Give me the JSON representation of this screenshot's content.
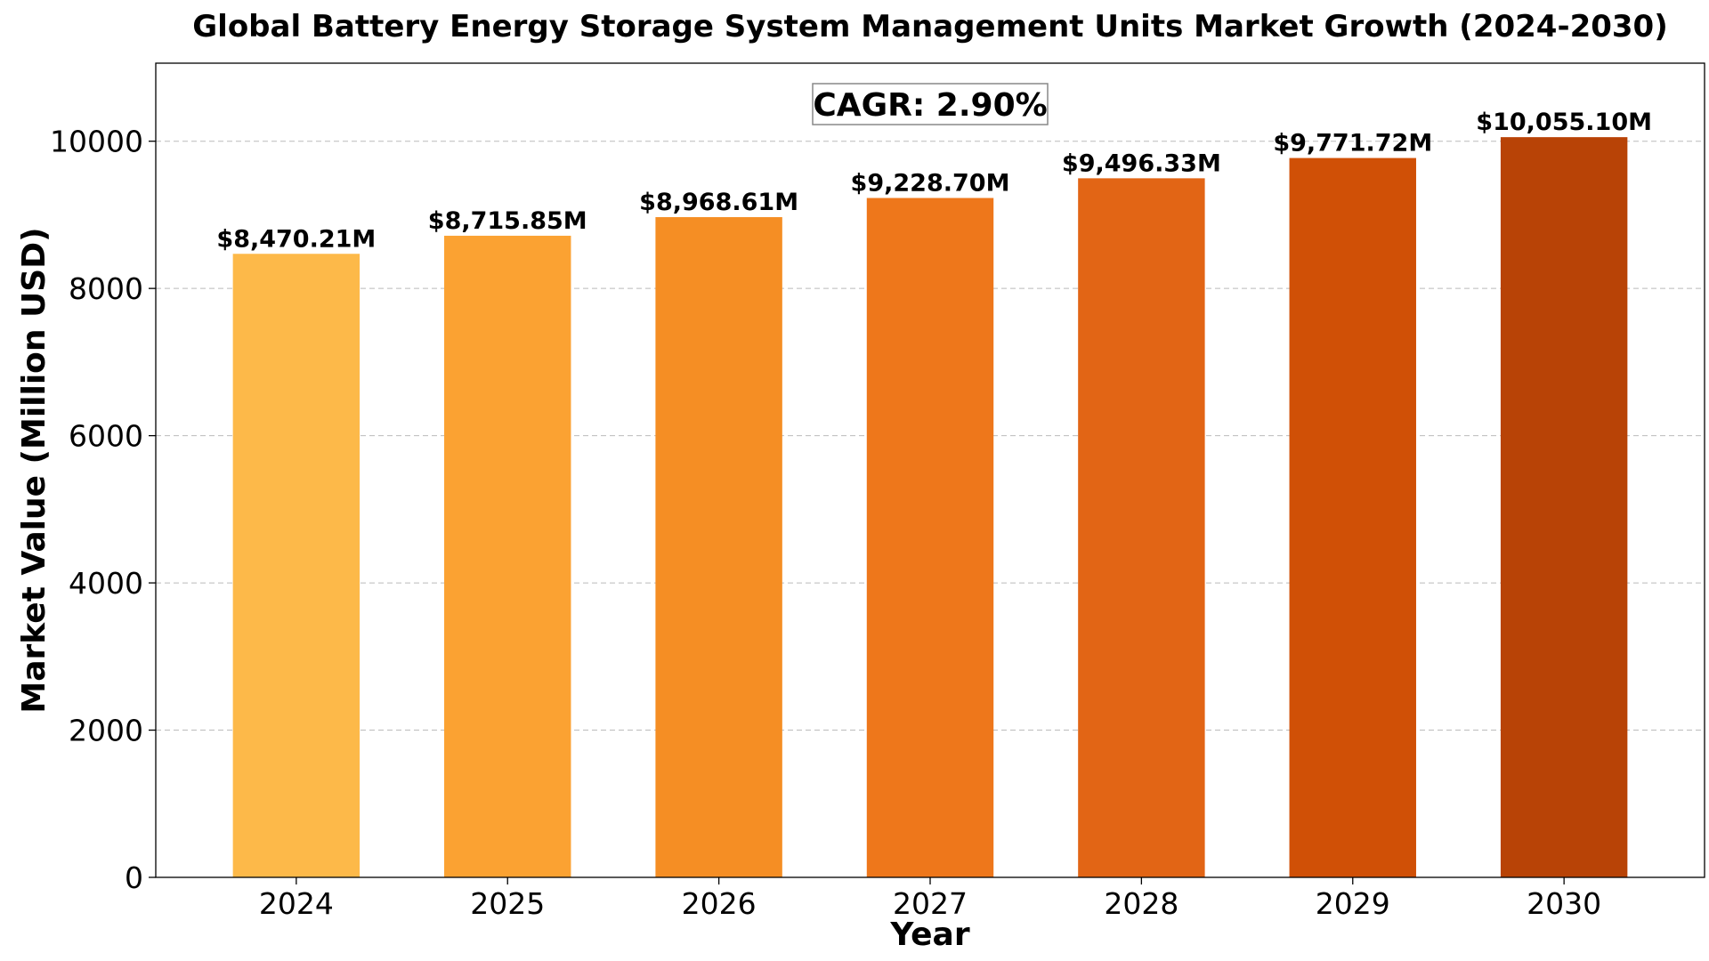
{
  "chart_data": {
    "type": "bar",
    "title": "Global Battery Energy Storage System Management Units Market Growth (2024-2030)",
    "xlabel": "Year",
    "ylabel": "Market Value (Million USD)",
    "categories": [
      "2024",
      "2025",
      "2026",
      "2027",
      "2028",
      "2029",
      "2030"
    ],
    "values": [
      8470.21,
      8715.85,
      8968.61,
      9228.7,
      9496.33,
      9771.72,
      10055.1
    ],
    "data_labels": [
      "$8,470.21M",
      "$8,715.85M",
      "$8,968.61M",
      "$9,228.70M",
      "$9,496.33M",
      "$9,771.72M",
      "$10,055.10M"
    ],
    "bar_colors": [
      "#FDB949",
      "#FBA232",
      "#F58E24",
      "#EE771B",
      "#E26515",
      "#D05006",
      "#B84306"
    ],
    "ylim": [
      0,
      11060
    ],
    "yticks": [
      0,
      2000,
      4000,
      6000,
      8000,
      10000
    ],
    "ytick_labels": [
      "0",
      "2000",
      "4000",
      "6000",
      "8000",
      "10000"
    ],
    "grid": "y-dashed",
    "annotation": "CAGR: 2.90%"
  }
}
